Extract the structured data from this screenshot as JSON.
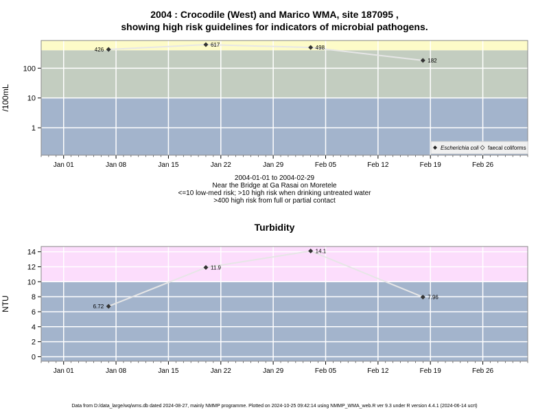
{
  "titles": {
    "line1": "2004 : Crocodile (West) and Marico WMA, site 187095 ,",
    "line2": "showing high risk guidelines for indicators of microbial pathogens."
  },
  "subtitles": {
    "daterange": "2004-01-01 to 2004-02-29",
    "site": "Near the Bridge at Ga Rasai on Moretele",
    "guideline1": "<=10 low-med risk; >10 high risk when drinking untreated water",
    "guideline2": ">400 high risk from full or partial contact"
  },
  "footer": "Data from D:/data_large/wq/wms.db dated 2024-08-27, mainly NMMP programme. Plotted on 2024-10-25 09:42:14 using NMMP_WMA_web.R ver 9.3 under R version 4.4.1 (2024-06-14 ucrt)",
  "colors": {
    "low_band": "#a3b4cc",
    "mid_band": "#c3cdc0",
    "high_band_top": "#fdfbc8",
    "high_band_bottom": "#fcddfc",
    "line": "#e6e6e6",
    "point": "#333333"
  },
  "chart_data": [
    {
      "type": "line",
      "title": "",
      "ylabel": "/100mL",
      "yscale": "log10",
      "ylim": [
        0.12,
        850
      ],
      "xlim": [
        "2003-12-29",
        "2004-03-03"
      ],
      "x_ticks": [
        "Jan 01",
        "Jan 08",
        "Jan 15",
        "Jan 22",
        "Jan 29",
        "Feb 05",
        "Feb 12",
        "Feb 19",
        "Feb 26"
      ],
      "y_ticks": [
        "1",
        "10",
        "100"
      ],
      "bands": [
        {
          "from": 0.12,
          "to": 10,
          "color": "#a3b4cc"
        },
        {
          "from": 10,
          "to": 400,
          "color": "#c3cdc0"
        },
        {
          "from": 400,
          "to": 850,
          "color": "#fdfbc8"
        }
      ],
      "legend": {
        "position": "bottom-right",
        "entries": [
          "Escherichia coli",
          "faecal coliforms"
        ]
      },
      "series": [
        {
          "name": "Escherichia coli",
          "x": [
            "2004-01-07",
            "2004-01-20",
            "2004-02-03",
            "2004-02-18"
          ],
          "values": [
            426,
            617,
            498,
            182
          ],
          "labels": [
            "426",
            "617",
            "498",
            "182"
          ]
        }
      ]
    },
    {
      "type": "line",
      "title": "Turbidity",
      "ylabel": "NTU",
      "yscale": "linear",
      "ylim": [
        -0.6,
        14.7
      ],
      "xlim": [
        "2003-12-29",
        "2004-03-03"
      ],
      "x_ticks": [
        "Jan 01",
        "Jan 08",
        "Jan 15",
        "Jan 22",
        "Jan 29",
        "Feb 05",
        "Feb 12",
        "Feb 19",
        "Feb 26"
      ],
      "y_ticks": [
        "0",
        "2",
        "4",
        "6",
        "8",
        "10",
        "12",
        "14"
      ],
      "bands": [
        {
          "from": -0.6,
          "to": 10,
          "color": "#a3b4cc"
        },
        {
          "from": 10,
          "to": 14.7,
          "color": "#fcddfc"
        }
      ],
      "series": [
        {
          "x": [
            "2004-01-07",
            "2004-01-20",
            "2004-02-03",
            "2004-02-18"
          ],
          "values": [
            6.72,
            11.9,
            14.1,
            7.96
          ],
          "labels": [
            "6.72",
            "11.9",
            "14.1",
            "7.96"
          ]
        }
      ]
    }
  ]
}
